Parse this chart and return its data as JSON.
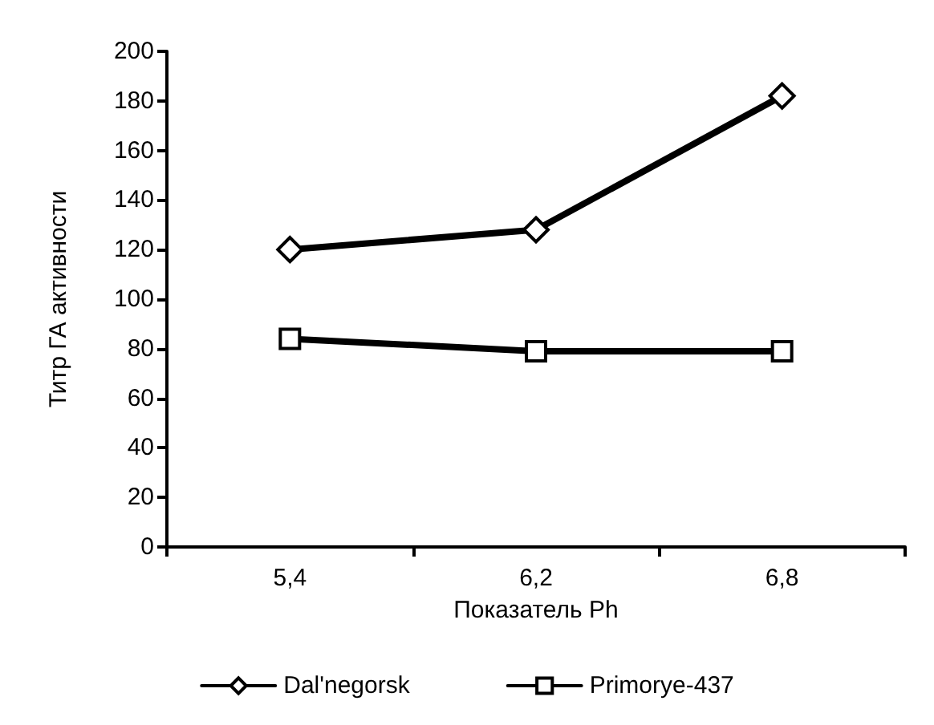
{
  "chart_data": {
    "type": "line",
    "xlabel": "Показатель Ph",
    "ylabel": "Титр ГА активности",
    "categories": [
      "5,4",
      "6,2",
      "6,8"
    ],
    "series": [
      {
        "name": "Dal'negorsk",
        "color": "#000000",
        "marker": "diamond",
        "values": [
          120,
          128,
          182
        ]
      },
      {
        "name": "Primorye-437",
        "color": "#000000",
        "marker": "square",
        "values": [
          84,
          79,
          79
        ]
      }
    ],
    "ylim": [
      0,
      200
    ],
    "yticks": [
      0,
      20,
      40,
      60,
      80,
      100,
      120,
      140,
      160,
      180,
      200
    ],
    "grid": false,
    "legend": "bottom",
    "line_style": "solid"
  }
}
